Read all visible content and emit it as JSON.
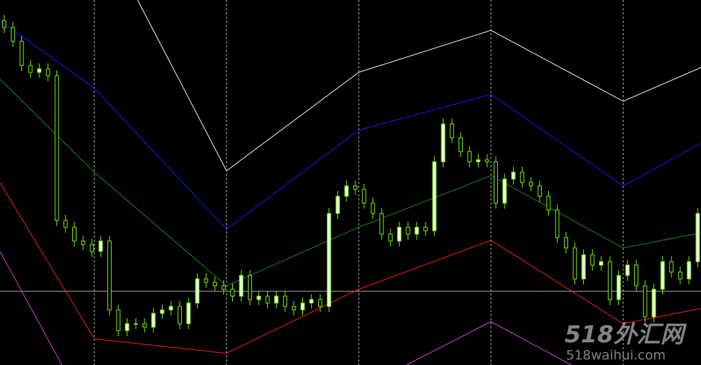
{
  "chart_data": {
    "type": "candlestick",
    "xlim": [
      -0.47,
      79.37
    ],
    "ylim": [
      0,
      530
    ],
    "up_color": "#e8fbe0",
    "down_color": "#000000",
    "candle_color": "#7cfc00",
    "open": [
      500,
      490,
      470,
      435,
      425,
      430,
      420,
      210,
      200,
      180,
      175,
      165,
      180,
      80,
      50,
      60,
      60,
      55,
      75,
      80,
      85,
      60,
      90,
      125,
      120,
      115,
      110,
      100,
      130,
      95,
      100,
      90,
      100,
      85,
      80,
      90,
      95,
      85,
      220,
      245,
      260,
      255,
      235,
      220,
      190,
      180,
      200,
      190,
      200,
      195,
      295,
      350,
      330,
      310,
      295,
      298,
      295,
      235,
      270,
      280,
      265,
      260,
      245,
      225,
      185,
      170,
      125,
      160,
      145,
      150,
      95,
      130,
      145,
      115,
      70,
      110,
      150,
      135,
      125,
      150
    ],
    "high": [
      508,
      498,
      478,
      443,
      438,
      438,
      428,
      218,
      208,
      188,
      183,
      188,
      188,
      88,
      68,
      68,
      68,
      83,
      88,
      93,
      93,
      98,
      133,
      133,
      128,
      123,
      118,
      138,
      138,
      108,
      108,
      108,
      108,
      93,
      98,
      103,
      103,
      228,
      253,
      268,
      268,
      263,
      243,
      228,
      198,
      208,
      208,
      208,
      208,
      303,
      358,
      358,
      338,
      318,
      306,
      306,
      303,
      278,
      288,
      288,
      273,
      268,
      253,
      233,
      193,
      178,
      168,
      168,
      158,
      158,
      138,
      153,
      153,
      123,
      118,
      158,
      158,
      143,
      158,
      228
    ],
    "low": [
      482,
      462,
      427,
      417,
      417,
      412,
      202,
      192,
      172,
      167,
      157,
      157,
      72,
      42,
      42,
      52,
      47,
      47,
      67,
      72,
      52,
      52,
      82,
      112,
      107,
      102,
      92,
      92,
      87,
      87,
      82,
      82,
      77,
      72,
      72,
      82,
      77,
      77,
      212,
      237,
      247,
      227,
      212,
      182,
      172,
      172,
      182,
      182,
      187,
      187,
      287,
      322,
      302,
      287,
      287,
      287,
      227,
      227,
      262,
      257,
      252,
      237,
      217,
      177,
      162,
      117,
      117,
      137,
      137,
      87,
      87,
      122,
      107,
      62,
      62,
      102,
      127,
      117,
      117,
      142
    ],
    "close": [
      490,
      470,
      435,
      425,
      430,
      420,
      210,
      200,
      180,
      175,
      165,
      180,
      80,
      50,
      60,
      60,
      55,
      75,
      80,
      85,
      60,
      90,
      125,
      120,
      115,
      110,
      100,
      130,
      95,
      100,
      90,
      100,
      85,
      80,
      90,
      95,
      85,
      220,
      245,
      260,
      255,
      235,
      220,
      190,
      180,
      200,
      190,
      200,
      195,
      295,
      350,
      330,
      310,
      295,
      298,
      295,
      235,
      270,
      280,
      265,
      260,
      245,
      225,
      185,
      170,
      125,
      160,
      145,
      150,
      95,
      130,
      145,
      115,
      70,
      110,
      150,
      135,
      125,
      150,
      220
    ],
    "series": [
      {
        "color": "#ffffff",
        "x": [
          15.2,
          25.33,
          40.39,
          55.45,
          70.51,
          79.37
        ],
        "values": [
          530,
          282,
          425,
          486,
          383,
          432
        ]
      },
      {
        "color": "#1a1aff",
        "x": [
          -0.47,
          10.27,
          25.33,
          40.39,
          55.45,
          70.51,
          79.37
        ],
        "values": [
          500,
          402,
          197,
          341,
          393,
          260,
          322
        ]
      },
      {
        "color": "#1f8a1f",
        "x": [
          -0.47,
          10.27,
          25.33,
          40.39,
          55.45,
          70.51,
          79.37
        ],
        "values": [
          415,
          280,
          115,
          200,
          275,
          170,
          192
        ]
      },
      {
        "color": "#ff2020",
        "x": [
          -0.47,
          10.27,
          25.33,
          40.39,
          55.45,
          70.51,
          79.37
        ],
        "values": [
          265,
          38,
          17,
          110,
          181,
          60,
          82
        ]
      },
      {
        "color": "#e040e0",
        "x": [
          -0.47,
          6.59
        ],
        "values": [
          165,
          0
        ]
      },
      {
        "color": "#e040e0",
        "x": [
          45.8,
          55.45,
          64.6
        ],
        "values": [
          0,
          63,
          0
        ]
      }
    ],
    "separators": [
      10.27,
      25.33,
      40.39,
      55.45,
      70.51
    ],
    "hline": 107,
    "watermark": "518外汇网",
    "watermark_url": "518waihui.com"
  }
}
